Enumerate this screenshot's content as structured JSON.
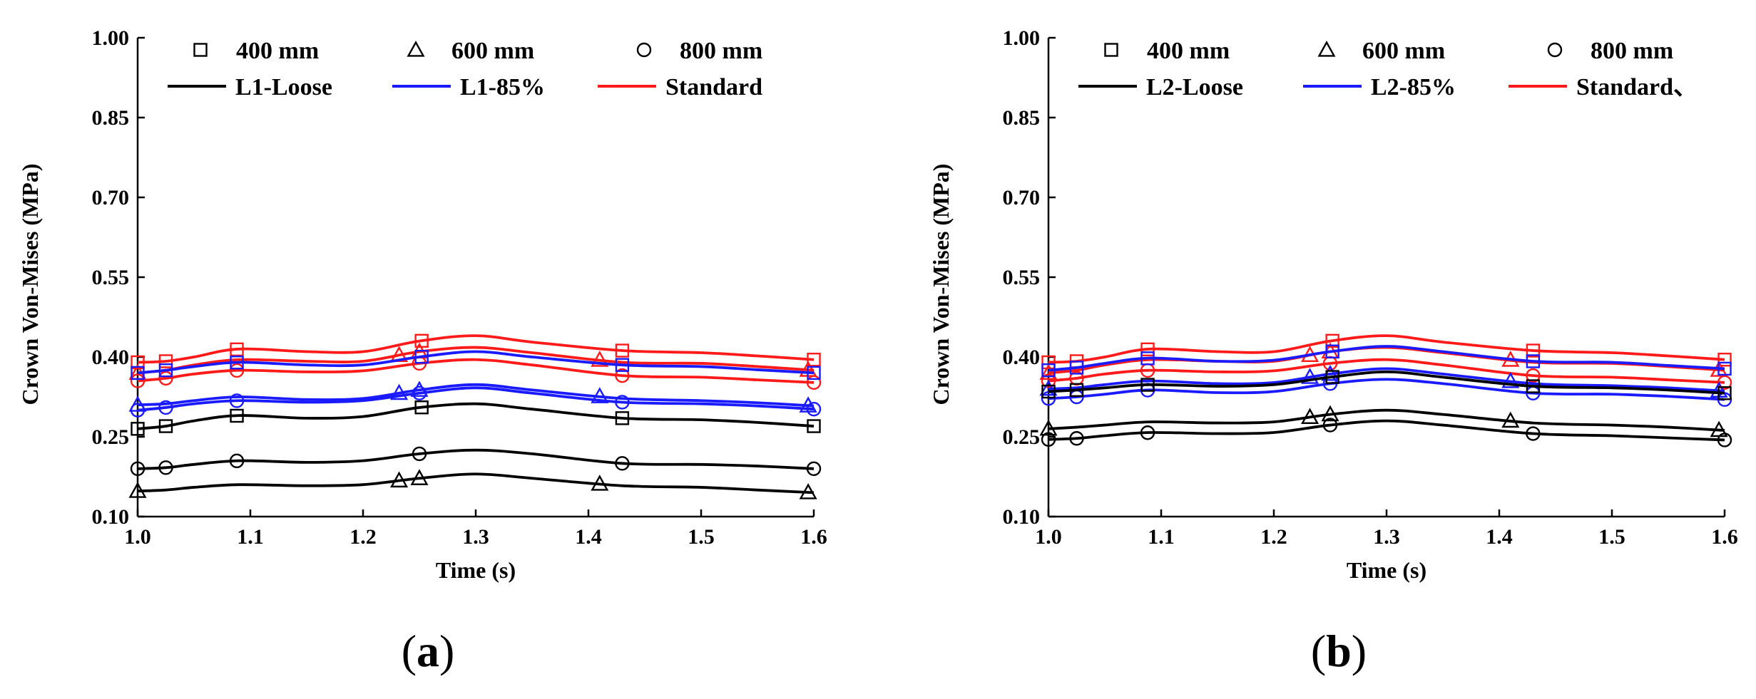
{
  "chart_data": [
    {
      "type": "line",
      "panel_label": "a",
      "xlabel": "Time (s)",
      "ylabel": "Crown Von-Mises (MPa)",
      "xlim": [
        1.0,
        1.6
      ],
      "ylim": [
        0.1,
        1.0
      ],
      "xticks": [
        "1.0",
        "1.1",
        "1.2",
        "1.3",
        "1.4",
        "1.5",
        "1.6"
      ],
      "yticks": [
        "0.10",
        "0.25",
        "0.40",
        "0.55",
        "0.70",
        "0.85",
        "1.00"
      ],
      "grid": false,
      "legend_position": "top",
      "legend": {
        "markers": [
          {
            "symbol": "square",
            "label": "400 mm"
          },
          {
            "symbol": "triangle",
            "label": "600 mm"
          },
          {
            "symbol": "circle",
            "label": "800 mm"
          }
        ],
        "lines": [
          {
            "color": "#000000",
            "label": "L1-Loose"
          },
          {
            "color": "#1a1aff",
            "label": "L1-85%"
          },
          {
            "color": "#ff1a1a",
            "label": "Standard"
          }
        ]
      },
      "x": [
        1.0,
        1.025,
        1.05,
        1.09,
        1.15,
        1.2,
        1.25,
        1.3,
        1.35,
        1.43,
        1.5,
        1.55,
        1.6
      ],
      "series": [
        {
          "group": "Standard",
          "depth": "400 mm",
          "marker": "square",
          "color": "#ff1a1a",
          "values": [
            0.39,
            0.392,
            0.4,
            0.415,
            0.41,
            0.41,
            0.43,
            0.44,
            0.428,
            0.412,
            0.408,
            0.402,
            0.395
          ]
        },
        {
          "group": "Standard",
          "depth": "600 mm",
          "marker": "triangle",
          "color": "#ff1a1a",
          "values": [
            0.37,
            0.375,
            0.385,
            0.395,
            0.392,
            0.392,
            0.41,
            0.418,
            0.408,
            0.39,
            0.388,
            0.382,
            0.375
          ]
        },
        {
          "group": "Standard",
          "depth": "800 mm",
          "marker": "circle",
          "color": "#ff1a1a",
          "values": [
            0.355,
            0.36,
            0.368,
            0.375,
            0.372,
            0.374,
            0.388,
            0.395,
            0.385,
            0.365,
            0.362,
            0.357,
            0.352
          ]
        },
        {
          "group": "L1-85%",
          "depth": "400 mm",
          "marker": "square",
          "color": "#1a1aff",
          "values": [
            0.37,
            0.375,
            0.382,
            0.39,
            0.385,
            0.385,
            0.4,
            0.41,
            0.4,
            0.385,
            0.382,
            0.376,
            0.37
          ]
        },
        {
          "group": "L1-85%",
          "depth": "600 mm",
          "marker": "triangle",
          "color": "#1a1aff",
          "values": [
            0.31,
            0.312,
            0.318,
            0.325,
            0.32,
            0.322,
            0.338,
            0.348,
            0.338,
            0.322,
            0.318,
            0.314,
            0.308
          ]
        },
        {
          "group": "L1-85%",
          "depth": "800 mm",
          "marker": "circle",
          "color": "#1a1aff",
          "values": [
            0.3,
            0.305,
            0.312,
            0.318,
            0.315,
            0.318,
            0.332,
            0.342,
            0.332,
            0.315,
            0.312,
            0.308,
            0.302
          ]
        },
        {
          "group": "L1-Loose",
          "depth": "400 mm",
          "marker": "square",
          "color": "#000000",
          "values": [
            0.265,
            0.27,
            0.28,
            0.29,
            0.285,
            0.288,
            0.305,
            0.312,
            0.302,
            0.285,
            0.282,
            0.277,
            0.27
          ]
        },
        {
          "group": "L1-Loose",
          "depth": "600 mm",
          "marker": "triangle",
          "color": "#000000",
          "values": [
            0.148,
            0.15,
            0.155,
            0.16,
            0.158,
            0.16,
            0.172,
            0.18,
            0.172,
            0.158,
            0.155,
            0.15,
            0.145
          ]
        },
        {
          "group": "L1-Loose",
          "depth": "800 mm",
          "marker": "circle",
          "color": "#000000",
          "values": [
            0.19,
            0.192,
            0.198,
            0.205,
            0.202,
            0.205,
            0.218,
            0.225,
            0.218,
            0.2,
            0.198,
            0.195,
            0.19
          ]
        }
      ]
    },
    {
      "type": "line",
      "panel_label": "b",
      "xlabel": "Time (s)",
      "ylabel": "Crown Von-Mises (MPa)",
      "xlim": [
        1.0,
        1.6
      ],
      "ylim": [
        0.1,
        1.0
      ],
      "xticks": [
        "1.0",
        "1.1",
        "1.2",
        "1.3",
        "1.4",
        "1.5",
        "1.6"
      ],
      "yticks": [
        "0.10",
        "0.25",
        "0.40",
        "0.55",
        "0.70",
        "0.85",
        "1.00"
      ],
      "grid": false,
      "legend_position": "top",
      "legend": {
        "markers": [
          {
            "symbol": "square",
            "label": "400 mm"
          },
          {
            "symbol": "triangle",
            "label": "600 mm"
          },
          {
            "symbol": "circle",
            "label": "800 mm"
          }
        ],
        "lines": [
          {
            "color": "#000000",
            "label": "L2-Loose"
          },
          {
            "color": "#1a1aff",
            "label": "L2-85%"
          },
          {
            "color": "#ff1a1a",
            "label": "Standard、"
          }
        ]
      },
      "x": [
        1.0,
        1.025,
        1.05,
        1.09,
        1.15,
        1.2,
        1.25,
        1.3,
        1.35,
        1.43,
        1.5,
        1.55,
        1.6
      ],
      "series": [
        {
          "group": "Standard",
          "depth": "400 mm",
          "marker": "square",
          "color": "#ff1a1a",
          "values": [
            0.39,
            0.392,
            0.4,
            0.415,
            0.41,
            0.41,
            0.43,
            0.44,
            0.428,
            0.412,
            0.408,
            0.402,
            0.395
          ]
        },
        {
          "group": "Standard",
          "depth": "600 mm",
          "marker": "triangle",
          "color": "#ff1a1a",
          "values": [
            0.37,
            0.375,
            0.385,
            0.395,
            0.392,
            0.392,
            0.41,
            0.418,
            0.408,
            0.39,
            0.388,
            0.382,
            0.375
          ]
        },
        {
          "group": "Standard",
          "depth": "800 mm",
          "marker": "circle",
          "color": "#ff1a1a",
          "values": [
            0.355,
            0.36,
            0.368,
            0.375,
            0.372,
            0.374,
            0.388,
            0.395,
            0.385,
            0.365,
            0.362,
            0.357,
            0.352
          ]
        },
        {
          "group": "L2-85%",
          "depth": "400 mm",
          "marker": "square",
          "color": "#1a1aff",
          "values": [
            0.375,
            0.38,
            0.388,
            0.398,
            0.392,
            0.394,
            0.41,
            0.42,
            0.41,
            0.392,
            0.39,
            0.384,
            0.378
          ]
        },
        {
          "group": "L2-85%",
          "depth": "600 mm",
          "marker": "triangle",
          "color": "#1a1aff",
          "values": [
            0.34,
            0.342,
            0.348,
            0.355,
            0.35,
            0.352,
            0.368,
            0.378,
            0.368,
            0.35,
            0.346,
            0.342,
            0.336
          ]
        },
        {
          "group": "L2-85%",
          "depth": "800 mm",
          "marker": "circle",
          "color": "#1a1aff",
          "values": [
            0.322,
            0.325,
            0.33,
            0.338,
            0.333,
            0.335,
            0.35,
            0.358,
            0.35,
            0.332,
            0.33,
            0.326,
            0.32
          ]
        },
        {
          "group": "L2-Loose",
          "depth": "400 mm",
          "marker": "square",
          "color": "#000000",
          "values": [
            0.335,
            0.338,
            0.342,
            0.348,
            0.345,
            0.348,
            0.362,
            0.372,
            0.362,
            0.345,
            0.342,
            0.338,
            0.332
          ]
        },
        {
          "group": "L2-Loose",
          "depth": "600 mm",
          "marker": "triangle",
          "color": "#000000",
          "values": [
            0.265,
            0.268,
            0.272,
            0.278,
            0.276,
            0.278,
            0.292,
            0.3,
            0.292,
            0.276,
            0.272,
            0.268,
            0.262
          ]
        },
        {
          "group": "L2-Loose",
          "depth": "800 mm",
          "marker": "circle",
          "color": "#000000",
          "values": [
            0.245,
            0.247,
            0.252,
            0.258,
            0.256,
            0.258,
            0.272,
            0.28,
            0.272,
            0.256,
            0.252,
            0.248,
            0.244
          ]
        }
      ]
    }
  ]
}
